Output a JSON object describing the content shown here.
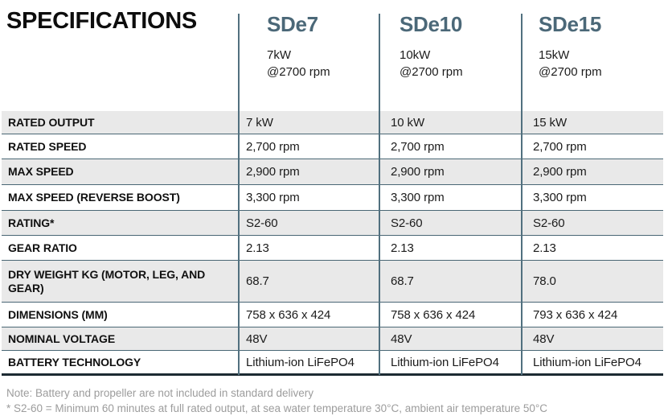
{
  "title": "SPECIFICATIONS",
  "products": [
    {
      "name": "SDe7",
      "power": "7kW",
      "rpm": "@2700 rpm"
    },
    {
      "name": "SDe10",
      "power": "10kW",
      "rpm": "@2700 rpm"
    },
    {
      "name": "SDe15",
      "power": "15kW",
      "rpm": "@2700 rpm"
    }
  ],
  "rows": [
    {
      "label": "RATED OUTPUT",
      "values": [
        "7 kW",
        "10 kW",
        "15 kW"
      ]
    },
    {
      "label": "RATED SPEED",
      "values": [
        "2,700 rpm",
        "2,700 rpm",
        "2,700 rpm"
      ]
    },
    {
      "label": "MAX SPEED",
      "values": [
        "2,900 rpm",
        "2,900 rpm",
        "2,900 rpm"
      ]
    },
    {
      "label": "MAX SPEED (REVERSE BOOST)",
      "values": [
        "3,300 rpm",
        "3,300 rpm",
        "3,300 rpm"
      ]
    },
    {
      "label": "RATING*",
      "values": [
        "S2-60",
        "S2-60",
        "S2-60"
      ]
    },
    {
      "label": "GEAR RATIO",
      "values": [
        "2.13",
        "2.13",
        "2.13"
      ]
    },
    {
      "label": "DRY WEIGHT KG (MOTOR, LEG, AND GEAR)",
      "values": [
        "68.7",
        "68.7",
        "78.0"
      ]
    },
    {
      "label": "DIMENSIONS (MM)",
      "values": [
        "758 x 636 x 424",
        "758 x 636 x 424",
        "793 x 636 x 424"
      ]
    },
    {
      "label": "NOMINAL VOLTAGE",
      "values": [
        "48V",
        "48V",
        "48V"
      ]
    },
    {
      "label": "BATTERY TECHNOLOGY",
      "values": [
        "Lithium-ion LiFePO4",
        "Lithium-ion LiFePO4",
        "Lithium-ion LiFePO4"
      ]
    }
  ],
  "notes": [
    "Note: Battery and propeller are not included in standard delivery",
    "* S2-60 = Minimum 60 minutes at full rated output, at sea water temperature 30°C, ambient air temperature 50°C"
  ],
  "colors": {
    "accent_slate": "#4b6878",
    "divider": "#51707f",
    "row_stripe": "#e9e9e9",
    "table_bottom_border": "#1d2b33",
    "note_gray": "#9c9c9c"
  }
}
